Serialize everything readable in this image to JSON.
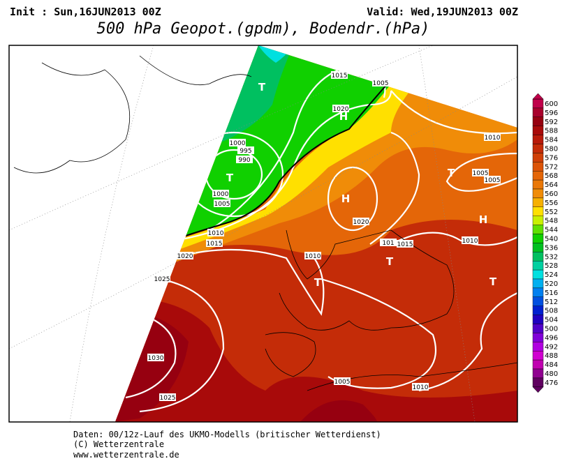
{
  "header": {
    "init": "Init : Sun,16JUN2013 00Z",
    "valid": "Valid: Wed,19JUN2013 00Z",
    "title": "500 hPa Geopot.(gpdm), Bodendr.(hPa)"
  },
  "legend": {
    "levels": [
      {
        "label": "600",
        "color": "#c0004a"
      },
      {
        "label": "596",
        "color": "#a8002c"
      },
      {
        "label": "592",
        "color": "#960010"
      },
      {
        "label": "588",
        "color": "#a80a0a"
      },
      {
        "label": "584",
        "color": "#b81a0a"
      },
      {
        "label": "580",
        "color": "#c42c08"
      },
      {
        "label": "576",
        "color": "#d04008"
      },
      {
        "label": "572",
        "color": "#dc5408"
      },
      {
        "label": "568",
        "color": "#e46608"
      },
      {
        "label": "564",
        "color": "#ea7808"
      },
      {
        "label": "560",
        "color": "#f08c08"
      },
      {
        "label": "556",
        "color": "#f6b000"
      },
      {
        "label": "552",
        "color": "#ffe000"
      },
      {
        "label": "548",
        "color": "#c8f000"
      },
      {
        "label": "544",
        "color": "#60e000"
      },
      {
        "label": "540",
        "color": "#10d000"
      },
      {
        "label": "536",
        "color": "#00c020"
      },
      {
        "label": "532",
        "color": "#00c060"
      },
      {
        "label": "528",
        "color": "#00d0a0"
      },
      {
        "label": "524",
        "color": "#00e0e0"
      },
      {
        "label": "520",
        "color": "#00b0f0"
      },
      {
        "label": "516",
        "color": "#0080f0"
      },
      {
        "label": "512",
        "color": "#0050e0"
      },
      {
        "label": "508",
        "color": "#0020d0"
      },
      {
        "label": "504",
        "color": "#2000c0"
      },
      {
        "label": "500",
        "color": "#5000c8"
      },
      {
        "label": "496",
        "color": "#8000d8"
      },
      {
        "label": "492",
        "color": "#b000e0"
      },
      {
        "label": "488",
        "color": "#d000d0"
      },
      {
        "label": "484",
        "color": "#c000b0"
      },
      {
        "label": "480",
        "color": "#900090"
      },
      {
        "label": "476",
        "color": "#600060"
      }
    ]
  },
  "isobar_labels": [
    "1015",
    "1005",
    "1020",
    "1010",
    "1000",
    "995",
    "990",
    "1005",
    "1005",
    "1000",
    "1005",
    "1020",
    "1010",
    "1015",
    "101",
    "1015",
    "1010",
    "1020",
    "1010",
    "1025",
    "1030",
    "1005",
    "1010",
    "1025"
  ],
  "pressure_centers": [
    "T",
    "H",
    "T",
    "H",
    "T",
    "H",
    "T",
    "T",
    "T"
  ],
  "footer": [
    "Daten: 00/12z-Lauf des UKMO-Modells (britischer Wetterdienst)",
    "(C) Wetterzentrale",
    "www.wetterzentrale.de"
  ]
}
